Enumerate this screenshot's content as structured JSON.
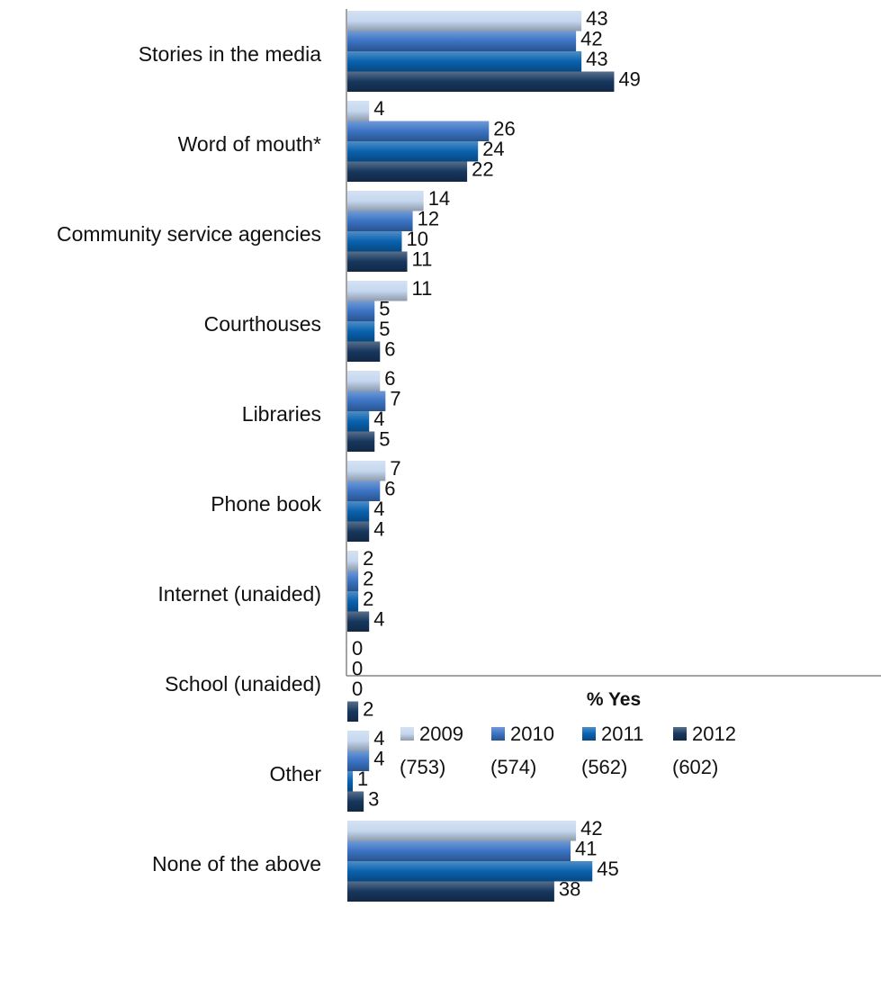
{
  "chart_data": {
    "type": "bar",
    "orientation": "horizontal",
    "categories": [
      "Stories in the media",
      "Word of mouth*",
      "Community service agencies",
      "Courthouses",
      "Libraries",
      "Phone book",
      "Internet (unaided)",
      "School (unaided)",
      "Other",
      "None of the above"
    ],
    "series": [
      {
        "name": "2009",
        "sample": "(753)",
        "color": "#c5d7ef",
        "values": [
          43,
          4,
          14,
          11,
          6,
          7,
          2,
          0,
          4,
          42
        ]
      },
      {
        "name": "2010",
        "sample": "(574)",
        "color": "#3b73c4",
        "values": [
          42,
          26,
          12,
          5,
          7,
          6,
          2,
          0,
          4,
          41
        ]
      },
      {
        "name": "2011",
        "sample": "(562)",
        "color": "#0a62b0",
        "values": [
          43,
          24,
          10,
          5,
          4,
          4,
          2,
          0,
          1,
          45
        ]
      },
      {
        "name": "2012",
        "sample": "(602)",
        "color": "#17375e",
        "values": [
          49,
          22,
          11,
          6,
          5,
          4,
          4,
          2,
          3,
          38
        ]
      }
    ],
    "xlabel": "% Yes",
    "xlim": [
      0,
      100
    ],
    "grid": false,
    "legend_position": "bottom"
  }
}
